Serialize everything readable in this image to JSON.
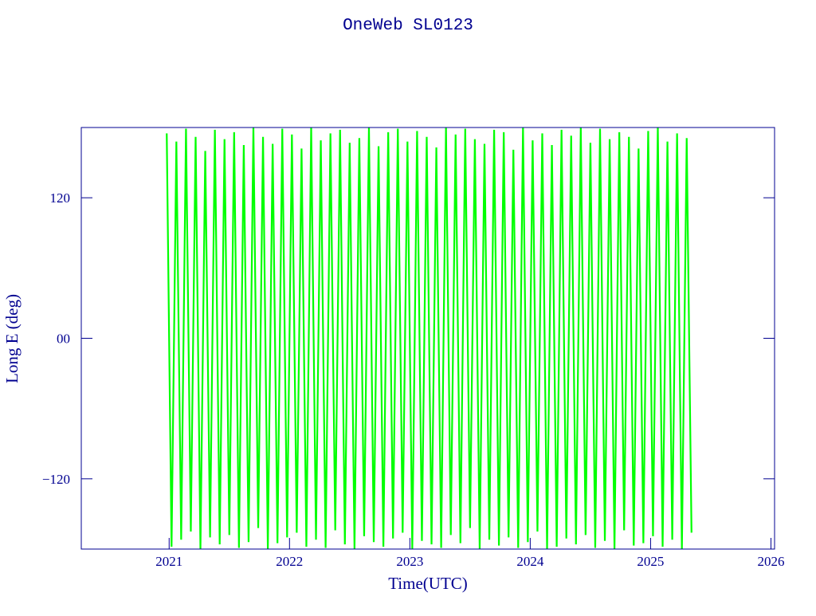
{
  "chart_data": {
    "type": "line",
    "title": "OneWeb SL0123",
    "xlabel": "Time(UTC)",
    "ylabel": "Long E (deg)",
    "xlim": [
      2020.27,
      2026.03
    ],
    "xticks": [
      2021,
      2022,
      2023,
      2024,
      2025,
      2026
    ],
    "ylim": [
      -180,
      180
    ],
    "yticks": [
      {
        "value": -120,
        "label": "−120"
      },
      {
        "value": 0,
        "label": "00"
      },
      {
        "value": 120,
        "label": "120"
      }
    ],
    "series": [
      {
        "color": "#00ff00",
        "x": [
          2020.98,
          2021.02,
          2021.06,
          2021.1,
          2021.14,
          2021.18,
          2021.22,
          2021.26,
          2021.3,
          2021.34,
          2021.38,
          2021.42,
          2021.46,
          2021.5,
          2021.54,
          2021.58,
          2021.62,
          2021.66,
          2021.7,
          2021.74,
          2021.78,
          2021.82,
          2021.86,
          2021.9,
          2021.94,
          2021.98,
          2022.02,
          2022.06,
          2022.1,
          2022.14,
          2022.18,
          2022.22,
          2022.26,
          2022.3,
          2022.34,
          2022.38,
          2022.42,
          2022.46,
          2022.5,
          2022.54,
          2022.58,
          2022.62,
          2022.66,
          2022.7,
          2022.74,
          2022.78,
          2022.82,
          2022.86,
          2022.9,
          2022.94,
          2022.98,
          2023.02,
          2023.06,
          2023.1,
          2023.14,
          2023.18,
          2023.22,
          2023.26,
          2023.3,
          2023.34,
          2023.38,
          2023.42,
          2023.46,
          2023.5,
          2023.54,
          2023.58,
          2023.62,
          2023.66,
          2023.7,
          2023.74,
          2023.78,
          2023.82,
          2023.86,
          2023.9,
          2023.94,
          2023.98,
          2024.02,
          2024.06,
          2024.1,
          2024.14,
          2024.18,
          2024.22,
          2024.26,
          2024.3,
          2024.34,
          2024.38,
          2024.42,
          2024.46,
          2024.5,
          2024.54,
          2024.58,
          2024.62,
          2024.66,
          2024.7,
          2024.74,
          2024.78,
          2024.82,
          2024.86,
          2024.9,
          2024.94,
          2024.98,
          2025.02,
          2025.06,
          2025.1,
          2025.14,
          2025.18,
          2025.22,
          2025.26,
          2025.3,
          2025.34
        ],
        "values": [
          175,
          -178,
          168,
          -172,
          179,
          -165,
          172,
          -180,
          160,
          -170,
          178,
          -176,
          170,
          -168,
          176,
          -179,
          165,
          -174,
          180,
          -162,
          172,
          -180,
          166,
          -175,
          179,
          -170,
          174,
          -166,
          162,
          -178,
          180,
          -172,
          169,
          -179,
          175,
          -164,
          178,
          -176,
          167,
          -180,
          171,
          -169,
          180,
          -174,
          164,
          -178,
          176,
          -171,
          179,
          -166,
          168,
          -180,
          177,
          -173,
          172,
          -176,
          163,
          -179,
          180,
          -168,
          174,
          -175,
          179,
          -162,
          170,
          -180,
          166,
          -172,
          178,
          -177,
          176,
          -170,
          161,
          -179,
          180,
          -174,
          169,
          -165,
          175,
          -180,
          165,
          -178,
          178,
          -171,
          173,
          -176,
          180,
          -168,
          167,
          -179,
          179,
          -173,
          170,
          -180,
          176,
          -164,
          172,
          -177,
          162,
          -175,
          177,
          -169,
          180,
          -178,
          168,
          -172,
          175,
          -180,
          171,
          -166
        ]
      }
    ]
  }
}
